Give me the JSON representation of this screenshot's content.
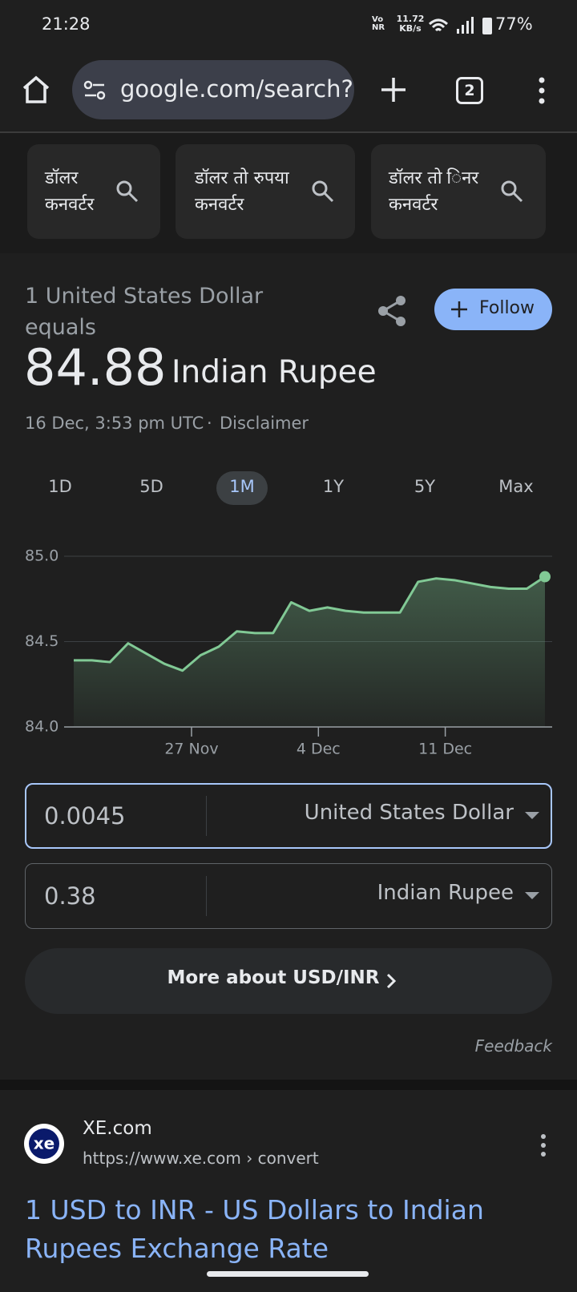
{
  "status_bar": {
    "time": "21:28",
    "network": "Vo NR",
    "speed": "11.72 KB/s",
    "battery": "77%"
  },
  "browser": {
    "url": "google.com/search?",
    "tab_count": "2"
  },
  "suggestions": [
    "डॉलर कनवर्टर",
    "डॉलर तो रुपया कनवर्टर",
    "डॉलर तो िनर कनवर्टर"
  ],
  "converter": {
    "equals_line": "1 United States Dollar equals",
    "rate": "84.88",
    "currency": "Indian Rupee",
    "timestamp": "16 Dec, 3:53 pm UTC",
    "disclaimer": "Disclaimer",
    "follow": "Follow",
    "ranges": [
      "1D",
      "5D",
      "1M",
      "1Y",
      "5Y",
      "Max"
    ],
    "from_amount": "0.0045",
    "from_currency": "United States Dollar",
    "to_amount": "0.38",
    "to_currency": "Indian Rupee",
    "more": "More about USD/INR",
    "feedback": "Feedback"
  },
  "chart_data": {
    "type": "line",
    "color": "#81c995",
    "grid": true,
    "x": [
      0,
      1,
      2,
      3,
      4,
      5,
      6,
      7,
      8,
      9,
      10,
      11,
      12,
      13,
      14,
      15,
      16,
      17,
      18,
      19,
      20,
      21,
      22,
      23,
      24,
      25,
      26
    ],
    "values": [
      84.39,
      84.39,
      84.38,
      84.49,
      84.43,
      84.37,
      84.33,
      84.42,
      84.47,
      84.56,
      84.55,
      84.55,
      84.73,
      84.68,
      84.7,
      84.68,
      84.67,
      84.67,
      84.67,
      84.85,
      84.87,
      84.86,
      84.84,
      84.82,
      84.81,
      84.81,
      84.88
    ],
    "xlim": [
      0,
      26
    ],
    "xticks": [
      {
        "value": 6.5,
        "label": "27 Nov"
      },
      {
        "value": 13.5,
        "label": "4 Dec"
      },
      {
        "value": 20.5,
        "label": "11 Dec"
      }
    ],
    "ylim": [
      84,
      85
    ],
    "yticks": [
      {
        "value": 84,
        "label": "84.0"
      },
      84.5,
      {
        "value": 85,
        "label": "85.0"
      }
    ]
  },
  "result": {
    "site": "XE.com",
    "url": "https://www.xe.com › convert",
    "title": "1 USD to INR - US Dollars to Indian Rupees Exchange Rate"
  }
}
